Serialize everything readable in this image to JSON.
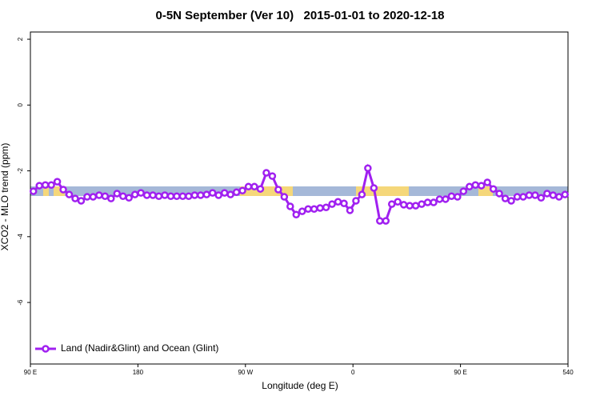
{
  "chart_data": {
    "type": "line",
    "title": "0-5N September (Ver 10)   2015-01-01 to 2020-12-18",
    "x_label": "Longitude (deg E)",
    "y_label": "XCO2 - MLO trend (ppm)",
    "xlim": [
      90,
      540
    ],
    "xticks": [
      {
        "value": 90,
        "label": "90 E"
      },
      180,
      {
        "value": 270,
        "label": "90 W"
      },
      {
        "value": 360,
        "label": "0"
      },
      {
        "value": 450,
        "label": "90 E"
      },
      540
    ],
    "ylim": [
      -7.87,
      2.22
    ],
    "yticks": [
      2,
      0,
      -2,
      -4,
      -6
    ],
    "legend": "bottom-left",
    "x": [
      92.5,
      97.5,
      102.5,
      107.5,
      112.5,
      117.5,
      122.5,
      127.5,
      132.5,
      137.5,
      142.5,
      147.5,
      152.5,
      157.5,
      162.5,
      167.5,
      172.5,
      177.5,
      182.5,
      187.5,
      192.5,
      197.5,
      202.5,
      207.5,
      212.5,
      217.5,
      222.5,
      227.5,
      232.5,
      237.5,
      242.5,
      247.5,
      252.5,
      257.5,
      262.5,
      267.5,
      272.5,
      277.5,
      282.5,
      287.5,
      292.5,
      297.5,
      302.5,
      307.5,
      312.5,
      317.5,
      322.5,
      327.5,
      332.5,
      337.5,
      342.5,
      347.5,
      352.5,
      357.5,
      362.5,
      367.5,
      372.5,
      377.5,
      382.5,
      387.5,
      392.5,
      397.5,
      402.5,
      407.5,
      412.5,
      417.5,
      422.5,
      427.5,
      432.5,
      437.5,
      442.5,
      447.5,
      452.5,
      457.5,
      462.5,
      467.5,
      472.5,
      477.5,
      482.5,
      487.5,
      492.5,
      497.5,
      502.5,
      507.5,
      512.5,
      517.5,
      522.5,
      527.5,
      532.5,
      537.5
    ],
    "series": [
      {
        "name": "Land (Nadir&Glint) and Ocean (Glint)",
        "color": "#a020f0",
        "values": [
          -2.62,
          -2.45,
          -2.43,
          -2.43,
          -2.33,
          -2.57,
          -2.72,
          -2.84,
          -2.91,
          -2.79,
          -2.79,
          -2.74,
          -2.77,
          -2.84,
          -2.69,
          -2.77,
          -2.82,
          -2.72,
          -2.67,
          -2.74,
          -2.74,
          -2.77,
          -2.74,
          -2.77,
          -2.77,
          -2.77,
          -2.77,
          -2.74,
          -2.74,
          -2.72,
          -2.67,
          -2.74,
          -2.67,
          -2.72,
          -2.65,
          -2.6,
          -2.48,
          -2.48,
          -2.55,
          -2.06,
          -2.16,
          -2.57,
          -2.79,
          -3.08,
          -3.33,
          -3.23,
          -3.16,
          -3.16,
          -3.13,
          -3.11,
          -3.01,
          -2.94,
          -2.99,
          -3.2,
          -2.91,
          -2.72,
          -1.92,
          -2.52,
          -3.52,
          -3.52,
          -3.01,
          -2.94,
          -3.03,
          -3.06,
          -3.06,
          -3.01,
          -2.96,
          -2.96,
          -2.86,
          -2.86,
          -2.77,
          -2.79,
          -2.62,
          -2.48,
          -2.43,
          -2.45,
          -2.35,
          -2.55,
          -2.69,
          -2.84,
          -2.91,
          -2.79,
          -2.79,
          -2.74,
          -2.74,
          -2.82,
          -2.69,
          -2.74,
          -2.79,
          -2.72
        ]
      }
    ]
  }
}
